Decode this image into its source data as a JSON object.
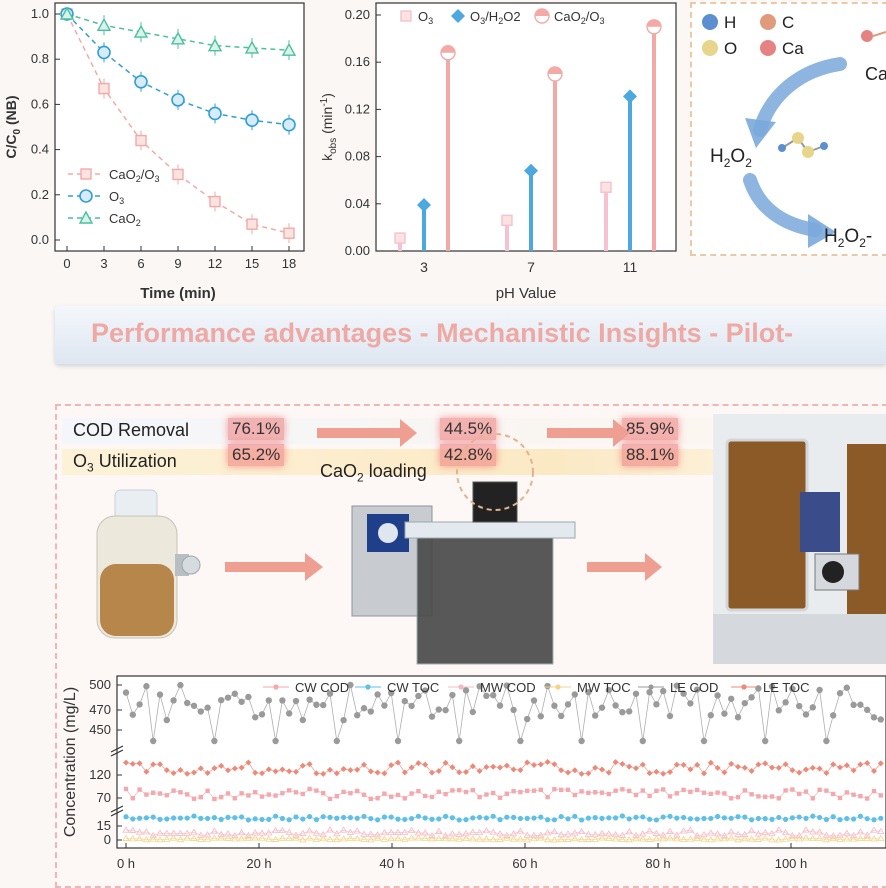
{
  "colors": {
    "caO2_O3": "#f3aaa7",
    "O3": "#2f9fd6",
    "CaO2": "#4cbf9f",
    "bar_O3": "#f6c1d1",
    "bar_O3H2O2": "#4ea8e0",
    "banner_text": "#efa9a4"
  },
  "chart_data": [
    {
      "type": "line",
      "xlabel": "Time (min)",
      "ylabel": "C/C0 (NB)",
      "ylabel_main": "C/C",
      "ylabel_sub": "0",
      "ylabel_tail": " (NB)",
      "x": [
        0,
        3,
        6,
        9,
        12,
        15,
        18
      ],
      "xlim": [
        0,
        18
      ],
      "ylim": [
        0,
        1.0
      ],
      "xticks": [
        "0",
        "3",
        "6",
        "9",
        "12",
        "15",
        "18"
      ],
      "yticks": [
        "0.0",
        "0.2",
        "0.4",
        "0.6",
        "0.8",
        "1.0"
      ],
      "legend_placement": "bottom-left",
      "series": [
        {
          "name": "CaO2/O3",
          "name_parts": [
            "CaO",
            "2",
            "/O",
            "3",
            ""
          ],
          "marker": "square",
          "values": [
            1.0,
            0.67,
            0.44,
            0.29,
            0.17,
            0.07,
            0.03
          ]
        },
        {
          "name": "O3",
          "name_parts": [
            "O",
            "3",
            "",
            "",
            ""
          ],
          "marker": "circle",
          "values": [
            1.0,
            0.83,
            0.7,
            0.62,
            0.56,
            0.53,
            0.51
          ]
        },
        {
          "name": "CaO2",
          "name_parts": [
            "CaO",
            "2",
            "",
            "",
            ""
          ],
          "marker": "triangle",
          "values": [
            1.0,
            0.95,
            0.92,
            0.89,
            0.86,
            0.85,
            0.84
          ]
        }
      ]
    },
    {
      "type": "bar",
      "xlabel": "pH Value",
      "ylabel": "kobs (min-1)",
      "ylabel_main": "k",
      "ylabel_sub": "obs",
      "ylabel_mid": " (min",
      "ylabel_sup": "-1",
      "ylabel_tail": ")",
      "categories": [
        "3",
        "7",
        "11"
      ],
      "ylim": [
        0,
        0.2
      ],
      "yticks": [
        "0.00",
        "0.04",
        "0.08",
        "0.12",
        "0.16",
        "0.20"
      ],
      "legend_placement": "top",
      "series": [
        {
          "name": "O3",
          "name_parts": [
            "O",
            "3",
            "",
            "",
            ""
          ],
          "marker": "square",
          "values": [
            0.011,
            0.026,
            0.054
          ]
        },
        {
          "name": "O3/H2O2",
          "name_parts": [
            "O",
            "3",
            "/H",
            "2",
            "O2"
          ],
          "marker": "diamond",
          "values": [
            0.039,
            0.068,
            0.131
          ]
        },
        {
          "name": "CaO2/O3",
          "name_parts": [
            "CaO",
            "2",
            "/O",
            "3",
            ""
          ],
          "marker": "half-circle",
          "values": [
            0.168,
            0.15,
            0.19
          ]
        }
      ]
    },
    {
      "type": "line",
      "xlabel": "",
      "ylabel": "Concentration (mg/L)",
      "xticks": [
        "0 h",
        "20 h",
        "40 h",
        "60 h",
        "80 h",
        "100 h"
      ],
      "yticks": [
        "0",
        "15",
        "70",
        "120",
        "450",
        "470",
        "500"
      ],
      "legend_placement": "top",
      "series": [
        {
          "name": "CW COD",
          "approx_level": 70
        },
        {
          "name": "CW TOC",
          "approx_level": 18
        },
        {
          "name": "MW COD",
          "approx_level": 5
        },
        {
          "name": "MW TOC",
          "approx_level": 0
        },
        {
          "name": "LE COD",
          "approx_level": 465
        },
        {
          "name": "LE TOC",
          "approx_level": 125
        }
      ]
    }
  ],
  "mechanism": {
    "legend": [
      {
        "label": "H",
        "color": "#5b8fd0"
      },
      {
        "label": "C",
        "color": "#e09a7c"
      },
      {
        "label": "O",
        "color": "#e6d58a"
      },
      {
        "label": "Ca",
        "color": "#e58383"
      }
    ],
    "ca_partial": "Ca",
    "h2o2_main": "H",
    "h2o2_sub1": "2",
    "h2o2_mid": "O",
    "h2o2_sub2": "2",
    "h2o2_2_main": "H",
    "h2o2_2_sub1": "2",
    "h2o2_2_mid": "O",
    "h2o2_2_sub2": "2",
    "h2o2_2_tail": "-"
  },
  "banner": {
    "text": "Performance advantages - Mechanistic Insights - Pilot-"
  },
  "pilot": {
    "rows": [
      {
        "label": "COD Removal",
        "label_parts": [
          "COD Removal",
          "",
          ""
        ]
      },
      {
        "label": "O3 Utilization",
        "label_parts": [
          "O",
          "3",
          " Utilization"
        ]
      }
    ],
    "values": [
      [
        "76.1%",
        "44.5%",
        "85.9%"
      ],
      [
        "65.2%",
        "42.8%",
        "88.1%"
      ]
    ],
    "loading_main": "CaO",
    "loading_sub": "2",
    "loading_tail": " loading"
  }
}
